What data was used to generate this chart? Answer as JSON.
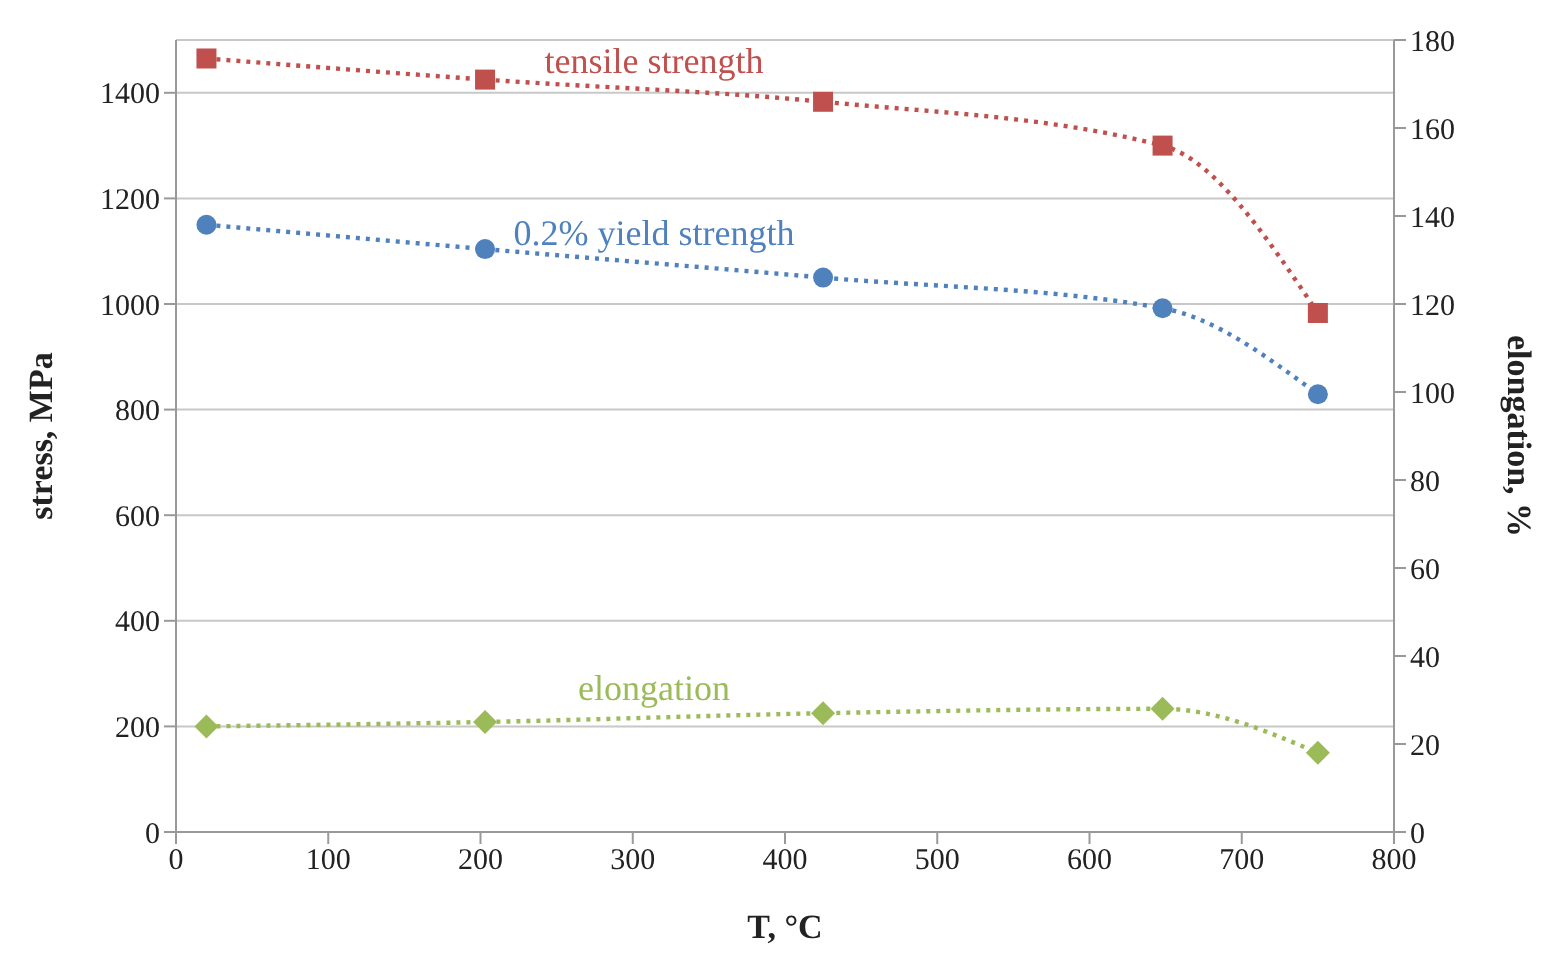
{
  "chart_data": {
    "type": "line",
    "xlabel": "T, °C",
    "ylabel": "stress, MPa",
    "y2label": "elongation, %",
    "x": [
      20,
      203,
      425,
      648,
      750
    ],
    "xlim": [
      0,
      800
    ],
    "xticks": [
      0,
      100,
      200,
      300,
      400,
      500,
      600,
      700,
      800
    ],
    "ylim": [
      0,
      1500
    ],
    "yticks": [
      0,
      200,
      400,
      600,
      800,
      1000,
      1200,
      1400
    ],
    "y2lim": [
      0,
      180
    ],
    "y2ticks": [
      0,
      20,
      40,
      60,
      80,
      100,
      120,
      140,
      160,
      180
    ],
    "grid": "y",
    "legend": false,
    "line_style": "dotted",
    "series": [
      {
        "name": "tensile strength",
        "color": "#c0504d",
        "marker": "square",
        "values": [
          1465,
          1425,
          1383,
          1300,
          983
        ]
      },
      {
        "name": "0.2% yield strength",
        "color": "#4f81bd",
        "marker": "circle",
        "values": [
          1150,
          1104,
          1050,
          992,
          829
        ]
      },
      {
        "name": "elongation",
        "color": "#9bbb59",
        "marker": "diamond",
        "axis": "y2",
        "values": [
          24,
          25,
          27,
          28,
          18
        ]
      }
    ]
  }
}
